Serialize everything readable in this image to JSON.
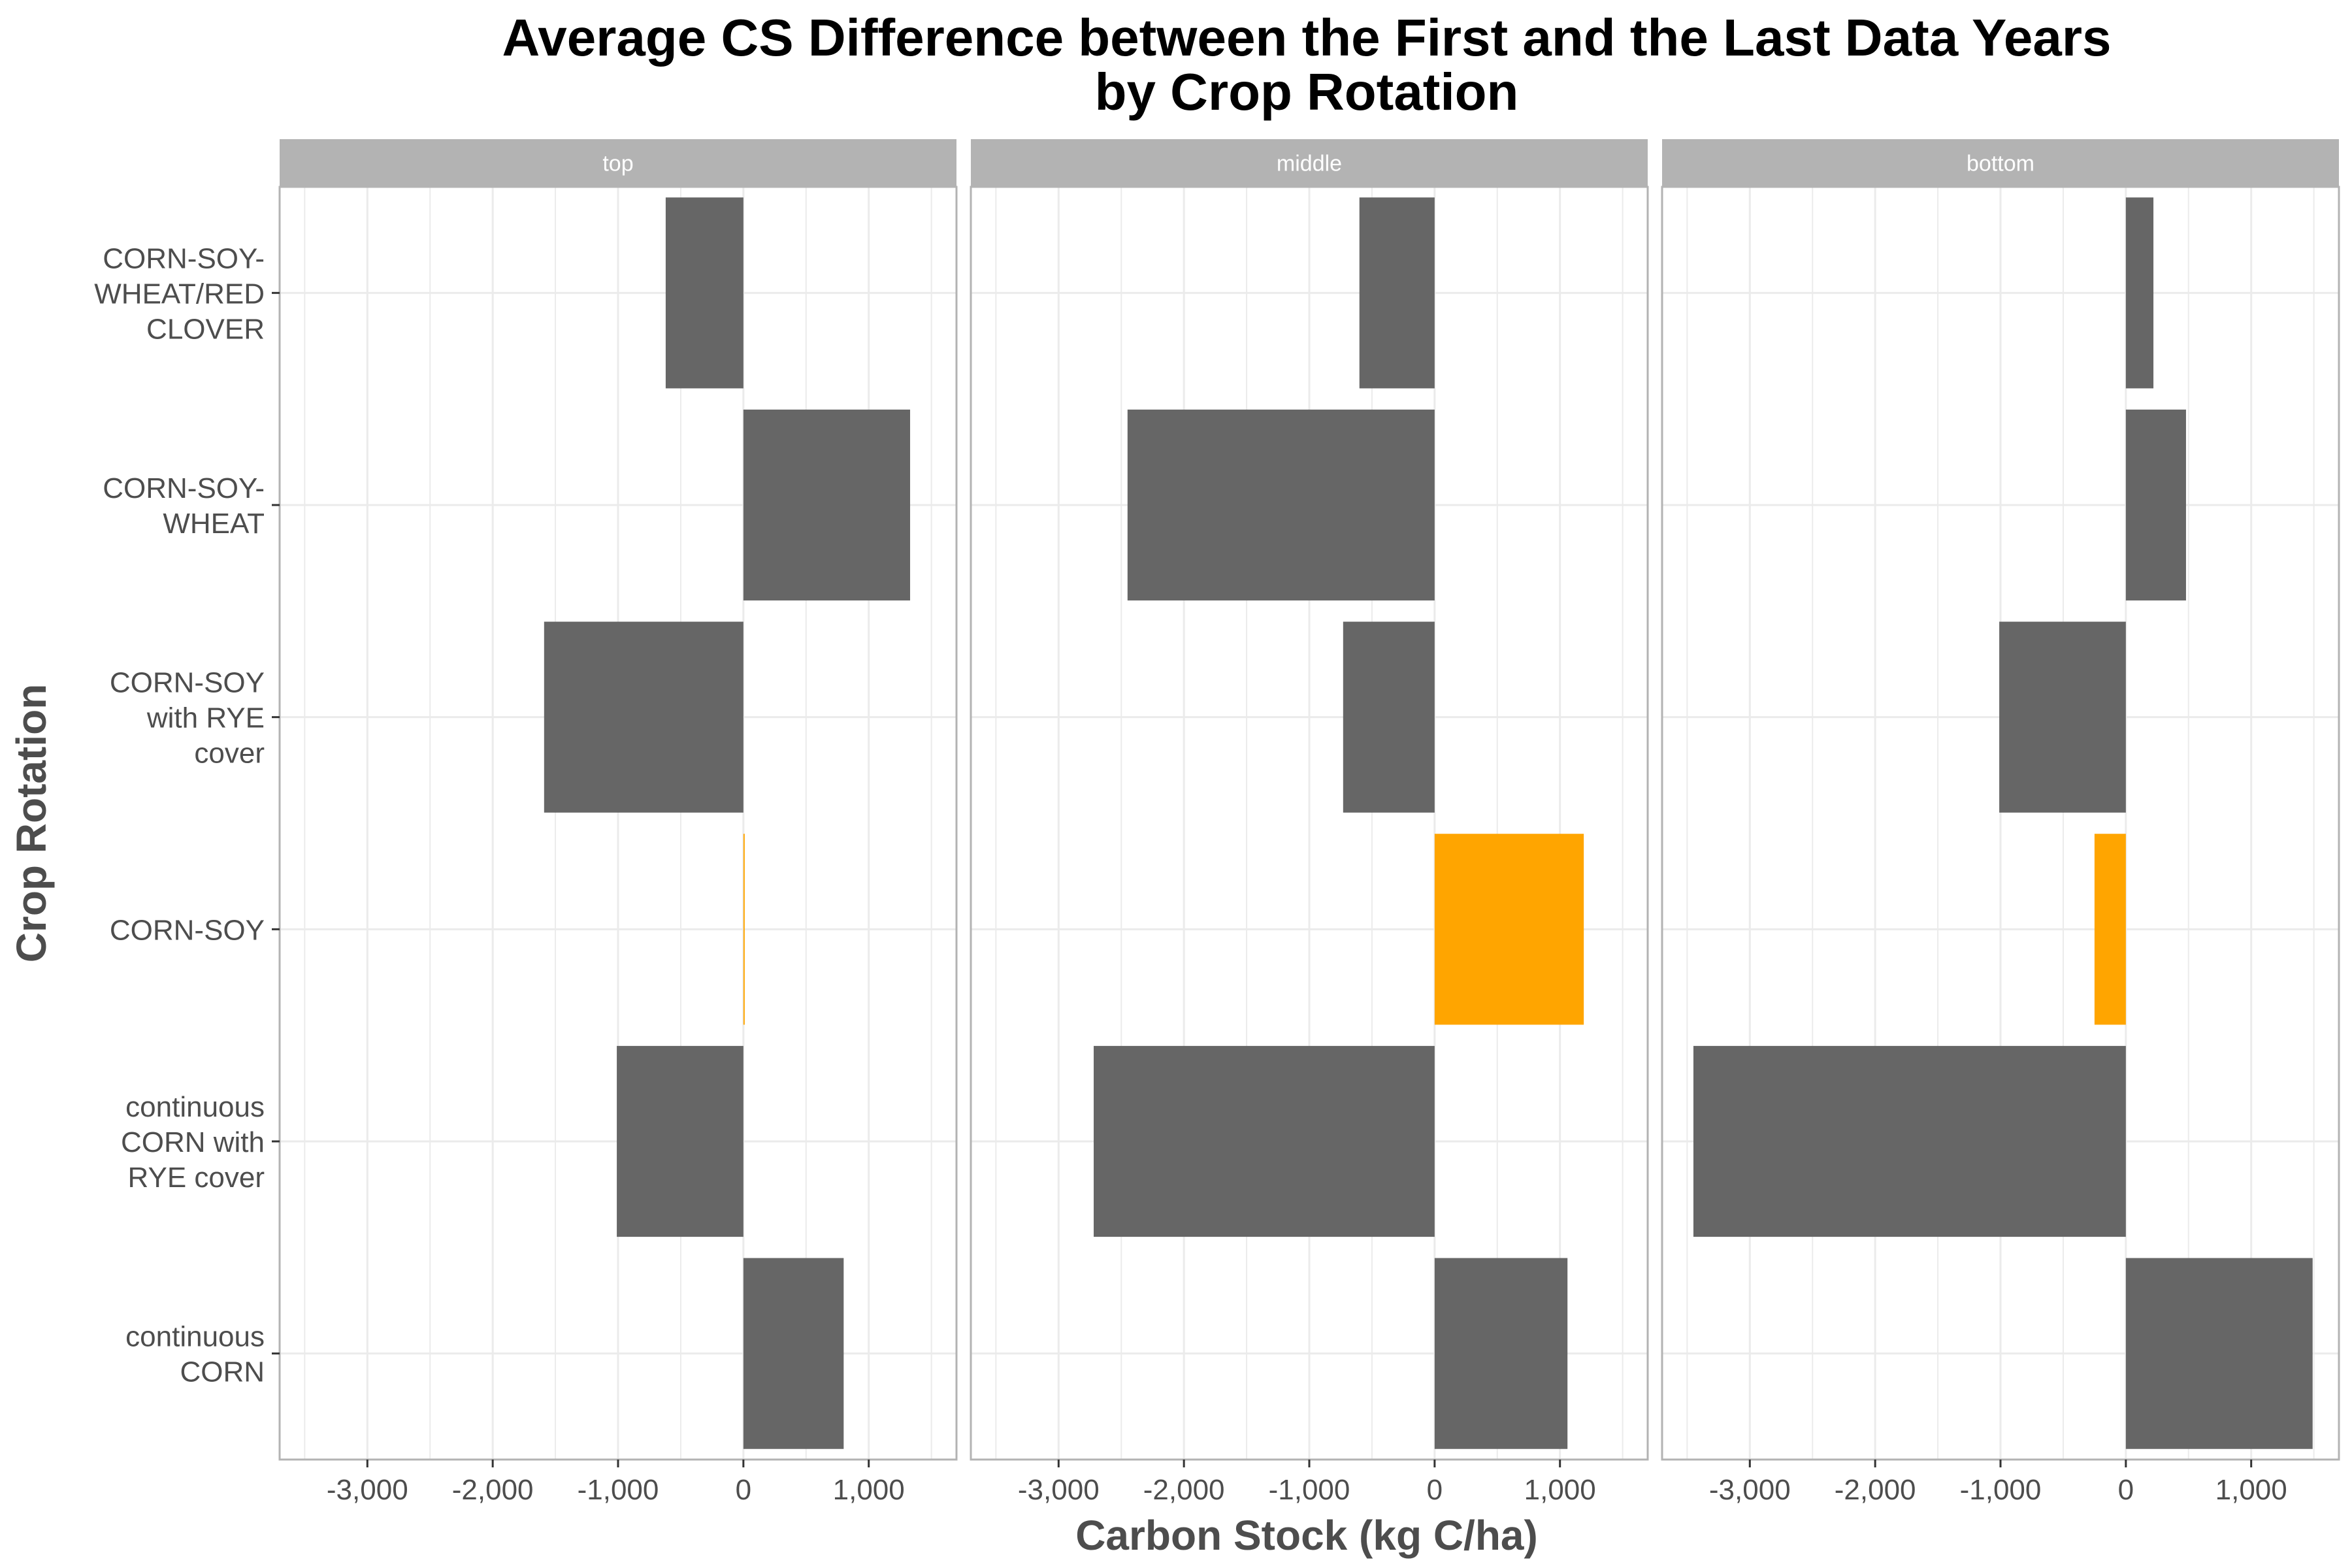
{
  "chart_data": {
    "type": "bar",
    "orientation": "horizontal",
    "title_lines": [
      "Average CS Difference between the First and the Last Data Years",
      "by Crop Rotation"
    ],
    "xlabel": "Carbon Stock (kg C/ha)",
    "ylabel": "Crop Rotation",
    "xlim": [
      -3700,
      1700
    ],
    "x_ticks": [
      -3000,
      -2000,
      -1000,
      0,
      1000
    ],
    "x_tick_labels": [
      "-3,000",
      "-2,000",
      "-1,000",
      "0",
      "1,000"
    ],
    "grid": true,
    "legend": "none",
    "categories": [
      [
        "CORN-SOY-",
        "WHEAT/RED",
        "CLOVER"
      ],
      [
        "CORN-SOY-",
        "WHEAT"
      ],
      [
        "CORN-SOY",
        "with RYE",
        "cover"
      ],
      [
        "CORN-SOY"
      ],
      [
        "continuous",
        "CORN with",
        "RYE cover"
      ],
      [
        "continuous",
        "CORN"
      ]
    ],
    "highlight_category_index": 3,
    "colors": {
      "default": "#666666",
      "highlight": "#FFA500",
      "strip": "#b3b3b3",
      "grid": "#ebebeb",
      "panel_border": "#b3b3b3"
    },
    "facets": [
      {
        "label": "top",
        "values": [
          -620,
          1330,
          -1590,
          10,
          -1010,
          800
        ]
      },
      {
        "label": "middle",
        "values": [
          -600,
          -2450,
          -730,
          1190,
          -2720,
          1060
        ]
      },
      {
        "label": "bottom",
        "values": [
          220,
          480,
          -1010,
          -250,
          -3450,
          1490
        ]
      }
    ]
  }
}
